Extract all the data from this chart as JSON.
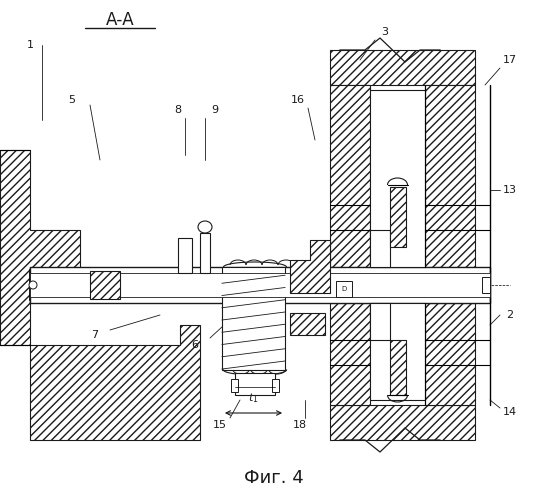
{
  "title": "А-А",
  "caption": "Фиг. 4",
  "bg": "#ffffff",
  "lc": "#1a1a1a"
}
